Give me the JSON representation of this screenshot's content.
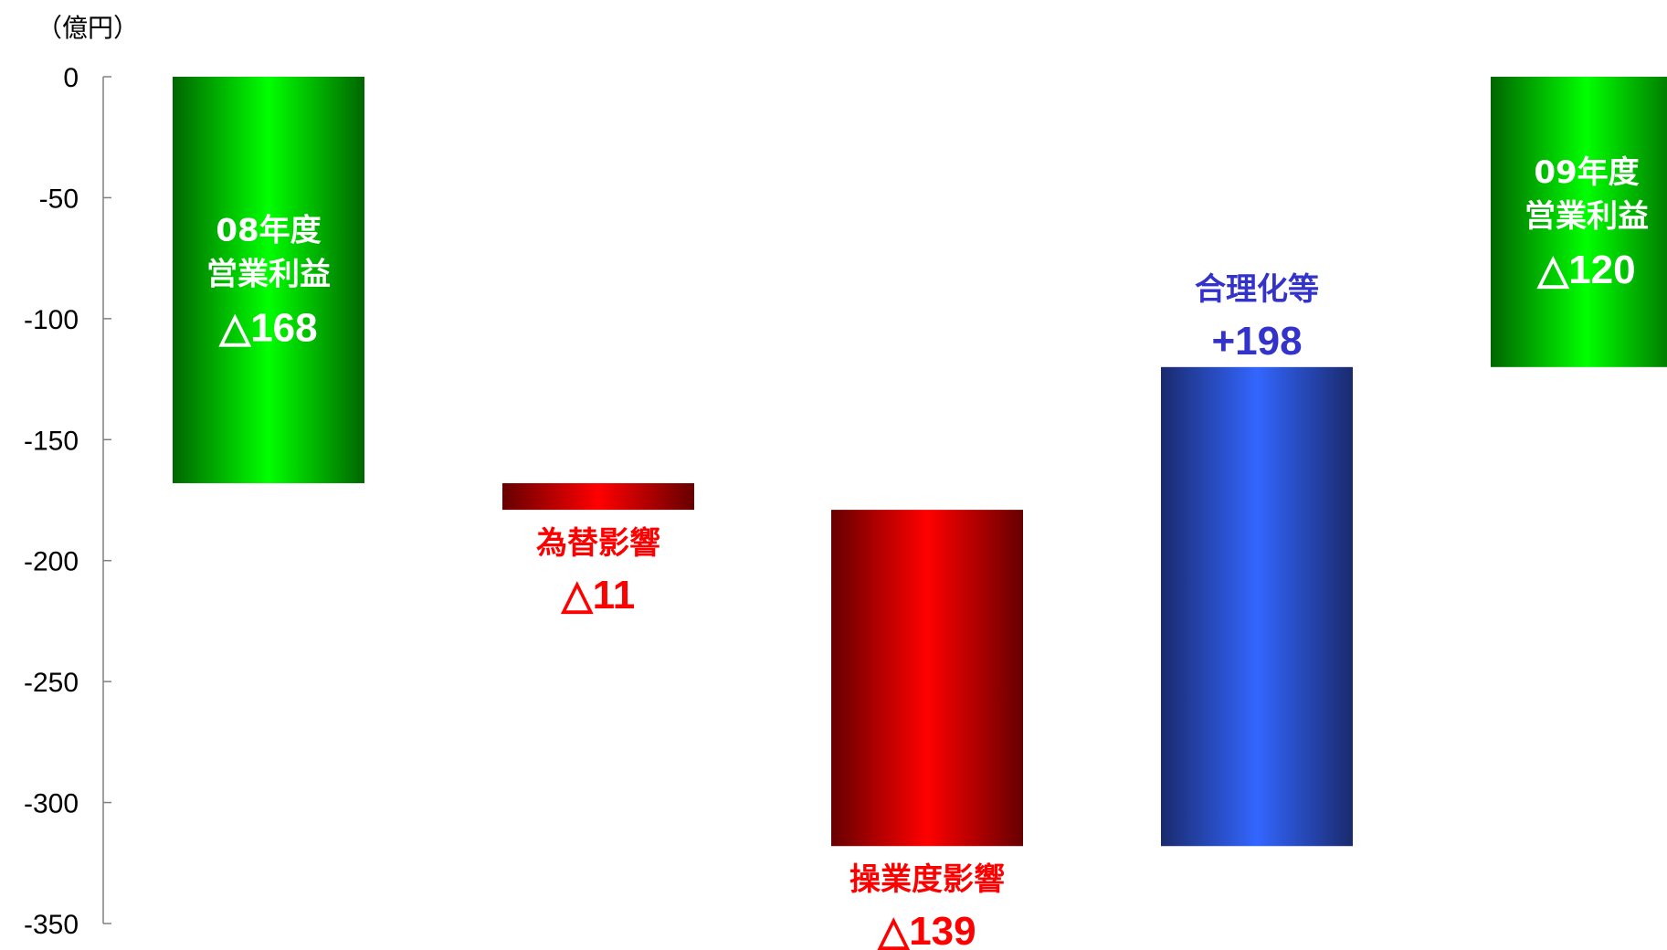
{
  "chart_data": {
    "type": "bar",
    "subtype": "waterfall",
    "unit_label": "（億円）",
    "ylim": [
      -350,
      0
    ],
    "yticks": [
      "0",
      "-50",
      "-100",
      "-150",
      "-200",
      "-250",
      "-300",
      "-350"
    ],
    "grid": false,
    "bars": [
      {
        "label": "08年度\n営業利益",
        "value_text": "△168",
        "start": 0,
        "end": -168,
        "style": "green",
        "text_color": "#ffffff",
        "label_position": "inside"
      },
      {
        "label": "為替影響",
        "value_text": "△11",
        "start": -168,
        "end": -179,
        "style": "red",
        "text_color": "#ff0000",
        "label_position": "below"
      },
      {
        "label": "操業度影響",
        "value_text": "△139",
        "start": -179,
        "end": -318,
        "style": "red",
        "text_color": "#ff0000",
        "label_position": "below"
      },
      {
        "label": "合理化等",
        "value_text": "+198",
        "start": -318,
        "end": -120,
        "style": "blue",
        "text_color": "#3333cc",
        "label_position": "above"
      },
      {
        "label": "09年度\n営業利益",
        "value_text": "△120",
        "start": 0,
        "end": -120,
        "style": "green",
        "text_color": "#ffffff",
        "label_position": "inside"
      }
    ]
  },
  "colors": {
    "green_edge": "#006600",
    "green_center": "#00ff00",
    "red_edge": "#660000",
    "red_center": "#ff0000",
    "blue_edge": "#1a2a6e",
    "blue_center": "#3366ff"
  }
}
